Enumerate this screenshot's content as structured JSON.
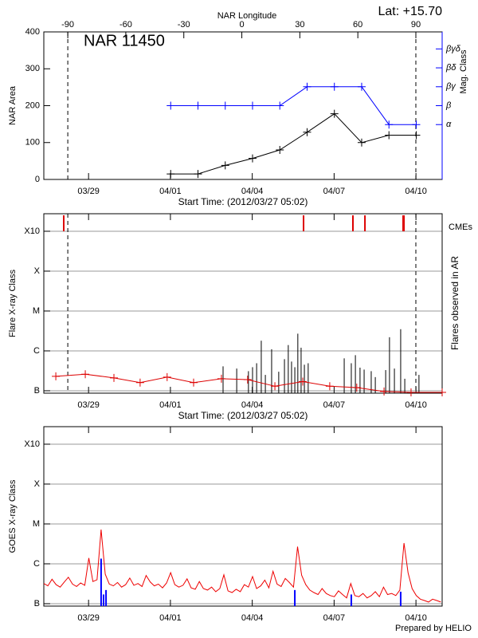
{
  "chart_data": [
    {
      "type": "line",
      "title": "NAR 11450",
      "annotation": "Lat: +15.70",
      "xlabel": "Start Time: (2012/03/27 05:02)",
      "x2label": "NAR Longitude",
      "ylabel": "NAR Area",
      "y2label": "Mag. Class",
      "markers": true,
      "xlim": [
        0.15,
        14.75
      ],
      "xticks": [
        {
          "value": 1.79,
          "label": "03/29"
        },
        {
          "value": 4.79,
          "label": "04/01"
        },
        {
          "value": 7.79,
          "label": "04/04"
        },
        {
          "value": 10.79,
          "label": "04/07"
        },
        {
          "value": 13.79,
          "label": "04/10"
        }
      ],
      "x2lim": [
        -102.4,
        103.6
      ],
      "x2ticks": [
        -90,
        -60,
        -30,
        0,
        30,
        60,
        90
      ],
      "ylim": [
        0,
        400
      ],
      "yticks": [
        0,
        100,
        200,
        300,
        400
      ],
      "y2lim": [
        -0.9,
        6.9
      ],
      "y2ticks": [
        {
          "value": 2,
          "label": "α"
        },
        {
          "value": 3,
          "label": "β"
        },
        {
          "value": 4,
          "label": "βγ"
        },
        {
          "value": 5,
          "label": "βδ"
        },
        {
          "value": 6,
          "label": "βγδ"
        }
      ],
      "x": [
        4.8,
        5.8,
        6.8,
        7.8,
        8.8,
        9.8,
        10.8,
        11.8,
        12.8,
        13.8
      ],
      "series": [
        {
          "color": "#000000",
          "values": [
            15,
            15,
            38,
            57,
            80,
            128,
            178,
            100,
            120,
            120
          ]
        },
        {
          "color": "#0000ff",
          "axis": "y2",
          "values": [
            3,
            3,
            3,
            3,
            3,
            4,
            4,
            4,
            2,
            2
          ]
        }
      ]
    },
    {
      "type": "flare",
      "xlabel": "Start Time: (2012/03/27 05:02)",
      "ylabel": "Flare X-ray Class",
      "y2label": "Flares observed in AR",
      "log": true,
      "grid": true,
      "markers": true,
      "xlim": [
        0.15,
        14.75
      ],
      "xticks": [
        {
          "value": 1.79,
          "label": "03/29"
        },
        {
          "value": 4.79,
          "label": "04/01"
        },
        {
          "value": 7.79,
          "label": "04/04"
        },
        {
          "value": 10.79,
          "label": "04/07"
        },
        {
          "value": 13.79,
          "label": "04/10"
        }
      ],
      "ylim": [
        8.7e-08,
        0.00275
      ],
      "yticks": [
        {
          "value": 1e-07,
          "label": "B"
        },
        {
          "value": 1e-06,
          "label": "C"
        },
        {
          "value": 1e-05,
          "label": "M"
        },
        {
          "value": 0.0001,
          "label": "X"
        },
        {
          "value": 0.001,
          "label": "X10"
        }
      ],
      "series": [
        {
          "color": "#dd0000",
          "x": [
            0.59,
            1.67,
            2.72,
            3.68,
            4.67,
            5.64,
            6.66,
            7.62,
            8.62,
            9.64,
            10.63,
            11.62,
            12.62,
            13.61,
            14.75
          ],
          "values": [
            2.3e-07,
            2.6e-07,
            2.1e-07,
            1.6e-07,
            2.2e-07,
            1.6e-07,
            2e-07,
            1.9e-07,
            1.3e-07,
            1.7e-07,
            1.3e-07,
            1.2e-07,
            9.6e-08,
            9.1e-08,
            9.1e-08
          ]
        }
      ],
      "flares": {
        "color": "#000000",
        "x": [
          6.72,
          7.22,
          7.65,
          7.8,
          7.95,
          8.12,
          8.27,
          8.5,
          8.76,
          8.97,
          9.11,
          9.23,
          9.35,
          9.46,
          9.58,
          9.7,
          9.84,
          11.16,
          11.42,
          11.57,
          11.74,
          11.89,
          12.15,
          12.3,
          12.68,
          12.82,
          13.0,
          13.23,
          13.38,
          13.9
        ],
        "values": [
          4.1e-07,
          3.6e-07,
          3.1e-07,
          3.9e-07,
          4.9e-07,
          1.8e-06,
          2.5e-07,
          1.1e-06,
          3e-07,
          6.2e-07,
          1.4e-06,
          5.4e-07,
          3.9e-07,
          2.7e-06,
          1.2e-06,
          4.5e-07,
          4.9e-07,
          6.5e-07,
          4.9e-07,
          7.8e-07,
          3.8e-07,
          3.4e-07,
          3.1e-07,
          2.2e-07,
          3.3e-07,
          2.2e-06,
          3.6e-07,
          3.5e-06,
          2e-07,
          2.5e-07
        ]
      },
      "cmes": {
        "name": "CMEs",
        "color": "#dd0000",
        "x": [
          0.88,
          9.67,
          11.48,
          11.92,
          13.32,
          13.35
        ]
      }
    },
    {
      "type": "line",
      "ylabel": "GOES X-ray Class",
      "footer": "Prepared by HELIO",
      "log": true,
      "grid": true,
      "xlim": [
        0.15,
        14.75
      ],
      "xticks": [
        {
          "value": 1.79,
          "label": "03/29"
        },
        {
          "value": 4.79,
          "label": "04/01"
        },
        {
          "value": 7.79,
          "label": "04/04"
        },
        {
          "value": 10.79,
          "label": "04/07"
        },
        {
          "value": 13.79,
          "label": "04/10"
        }
      ],
      "ylim": [
        8.7e-08,
        0.00275
      ],
      "yticks": [
        {
          "value": 1e-07,
          "label": "B"
        },
        {
          "value": 1e-06,
          "label": "C"
        },
        {
          "value": 1e-05,
          "label": "M"
        },
        {
          "value": 0.0001,
          "label": "X"
        },
        {
          "value": 0.001,
          "label": "X10"
        }
      ],
      "series": [
        {
          "color": "#ee0000",
          "x": [
            0.15,
            0.3,
            0.45,
            0.6,
            0.75,
            0.9,
            1.05,
            1.2,
            1.35,
            1.5,
            1.65,
            1.8,
            1.95,
            2.1,
            2.25,
            2.4,
            2.55,
            2.7,
            2.85,
            3.0,
            3.15,
            3.3,
            3.45,
            3.6,
            3.75,
            3.9,
            4.05,
            4.2,
            4.35,
            4.5,
            4.65,
            4.8,
            4.95,
            5.1,
            5.25,
            5.4,
            5.55,
            5.7,
            5.85,
            6.0,
            6.15,
            6.3,
            6.45,
            6.6,
            6.75,
            6.9,
            7.05,
            7.2,
            7.35,
            7.5,
            7.65,
            7.8,
            7.95,
            8.1,
            8.25,
            8.4,
            8.55,
            8.7,
            8.85,
            9.0,
            9.15,
            9.3,
            9.45,
            9.6,
            9.75,
            9.9,
            10.05,
            10.2,
            10.35,
            10.5,
            10.65,
            10.8,
            10.95,
            11.1,
            11.25,
            11.4,
            11.55,
            11.7,
            11.85,
            12.0,
            12.15,
            12.3,
            12.45,
            12.6,
            12.75,
            12.9,
            13.05,
            13.2,
            13.35,
            13.5,
            13.65,
            13.8,
            13.95,
            14.1,
            14.25,
            14.4,
            14.55,
            14.7
          ],
          "values": [
            3.2e-07,
            2.8e-07,
            4.1e-07,
            3e-07,
            2.6e-07,
            3.5e-07,
            4.6e-07,
            3.1e-07,
            2.7e-07,
            3.3e-07,
            2.9e-07,
            1.4e-06,
            3.6e-07,
            4e-07,
            7.2e-06,
            5.5e-07,
            3.1e-07,
            2.8e-07,
            3.4e-07,
            2.6e-07,
            3e-07,
            4.4e-07,
            2.9e-07,
            3.2e-07,
            2.7e-07,
            5.1e-07,
            3.5e-07,
            2.8e-07,
            3.1e-07,
            2.5e-07,
            3.3e-07,
            6e-07,
            3e-07,
            2.6e-07,
            2.9e-07,
            4.2e-07,
            2.5e-07,
            2.3e-07,
            3.6e-07,
            2.4e-07,
            2.2e-07,
            2.6e-07,
            2e-07,
            2.4e-07,
            5.3e-07,
            2.1e-07,
            1.9e-07,
            2.3e-07,
            2e-07,
            3e-07,
            2.6e-07,
            4.8e-07,
            2.4e-07,
            2.8e-07,
            3.9e-07,
            2.5e-07,
            6.5e-07,
            3.1e-07,
            2.7e-07,
            4.3e-07,
            3.4e-07,
            2.6e-07,
            2.7e-06,
            5.2e-07,
            3e-07,
            2.2e-07,
            1.9e-07,
            1.7e-07,
            2.4e-07,
            1.8e-07,
            1.6e-07,
            1.5e-07,
            2.1e-07,
            1.7e-07,
            1.4e-07,
            3.2e-07,
            1.6e-07,
            1.5e-07,
            1.8e-07,
            1.4e-07,
            1.6e-07,
            2e-07,
            1.5e-07,
            2.6e-07,
            1.7e-07,
            1.8e-07,
            1.6e-07,
            2.2e-07,
            3.3e-06,
            6e-07,
            2.4e-07,
            1.6e-07,
            1.3e-07,
            1.2e-07,
            1.1e-07,
            1.3e-07,
            1.2e-07,
            1.1e-07
          ]
        }
      ],
      "blue_lines": {
        "color": "#0000ff",
        "x": [
          2.25,
          2.34,
          2.43,
          9.35,
          11.42,
          13.23
        ],
        "values": [
          1.35e-06,
          1.7e-07,
          2.2e-07,
          2.2e-07,
          1.7e-07,
          2e-07
        ]
      }
    }
  ]
}
